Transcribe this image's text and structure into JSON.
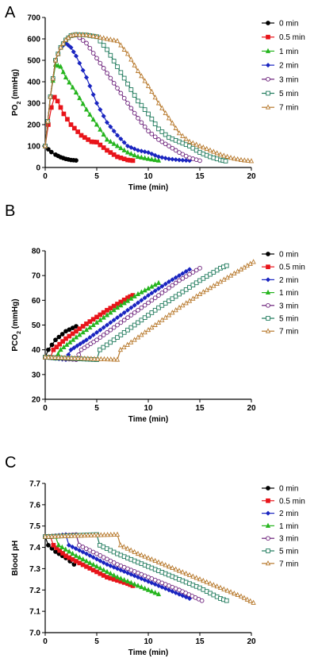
{
  "chart_data": [
    {
      "panel_letter": "A",
      "type": "line",
      "xlabel": "Time (min)",
      "ylabel_main": "PO",
      "ylabel_sub": "2",
      "ylabel_tail": " (mmHg)",
      "xlim": [
        0,
        20
      ],
      "ylim": [
        0,
        700
      ],
      "xticks": [
        0,
        5,
        10,
        15,
        20
      ],
      "yticks": [
        0,
        100,
        200,
        300,
        400,
        500,
        600,
        700
      ],
      "legend_position": "right",
      "series": [
        {
          "name": "0 min",
          "color": "#000000",
          "marker": "circle",
          "x": [
            0,
            0.3,
            0.6,
            1.0,
            1.5,
            2.0,
            2.5,
            3.0
          ],
          "y": [
            100,
            85,
            72,
            60,
            48,
            40,
            35,
            33
          ]
        },
        {
          "name": "0.5 min",
          "color": "#e8141a",
          "marker": "square",
          "x": [
            0,
            0.3,
            0.6,
            0.9,
            1.2,
            1.8,
            2.5,
            3.5,
            4.5,
            5.0,
            6.0,
            7.0,
            8.0,
            8.5
          ],
          "y": [
            100,
            200,
            280,
            328,
            310,
            250,
            200,
            150,
            120,
            118,
            80,
            50,
            35,
            32
          ]
        },
        {
          "name": "1 min",
          "color": "#26b51f",
          "marker": "triangle",
          "x": [
            0,
            0.5,
            1.0,
            1.5,
            2.0,
            3.0,
            4.0,
            5.0,
            6.0,
            7.0,
            8.0,
            9.0,
            10.0,
            11.0
          ],
          "y": [
            100,
            330,
            480,
            470,
            420,
            350,
            270,
            200,
            130,
            100,
            70,
            50,
            40,
            32
          ]
        },
        {
          "name": "2 min",
          "color": "#1a25c0",
          "marker": "diamond",
          "x": [
            0,
            0.5,
            1.0,
            1.5,
            2.0,
            2.5,
            3.0,
            4.0,
            5.0,
            6.0,
            7.0,
            8.0,
            9.0,
            10.0,
            11.0,
            12.0,
            13.0,
            14.0
          ],
          "y": [
            100,
            330,
            500,
            560,
            580,
            560,
            520,
            420,
            300,
            210,
            150,
            100,
            80,
            70,
            50,
            40,
            35,
            32
          ]
        },
        {
          "name": "3 min",
          "color": "#6b1f7a",
          "marker": "circle-open",
          "x": [
            0,
            0.5,
            1.0,
            1.5,
            2.0,
            2.5,
            3.0,
            4.0,
            5.0,
            6.0,
            7.0,
            8.0,
            9.0,
            10.0,
            11.0,
            12.0,
            13.0,
            14.0,
            15.0
          ],
          "y": [
            100,
            330,
            500,
            560,
            595,
            615,
            618,
            580,
            510,
            440,
            370,
            300,
            230,
            170,
            130,
            100,
            70,
            45,
            32
          ]
        },
        {
          "name": "5 min",
          "color": "#1f7a5c",
          "marker": "square-open",
          "x": [
            0,
            0.5,
            1.0,
            1.5,
            2.0,
            2.5,
            3.0,
            4.0,
            5.0,
            6.0,
            7.0,
            8.0,
            9.0,
            10.0,
            11.0,
            12.0,
            13.0,
            14.0,
            15.0,
            16.0,
            17.0,
            17.5
          ],
          "y": [
            100,
            330,
            500,
            560,
            595,
            615,
            620,
            618,
            610,
            550,
            470,
            390,
            310,
            250,
            180,
            140,
            120,
            100,
            70,
            50,
            35,
            30
          ]
        },
        {
          "name": "7 min",
          "color": "#b87a2e",
          "marker": "triangle-open",
          "x": [
            0,
            0.5,
            1.0,
            1.5,
            2.0,
            2.5,
            3.0,
            4.0,
            5.0,
            6.0,
            7.0,
            8.0,
            9.0,
            10.0,
            11.0,
            12.0,
            13.0,
            14.0,
            15.0,
            16.0,
            17.0,
            18.0,
            19.0,
            20.0
          ],
          "y": [
            100,
            330,
            500,
            560,
            595,
            615,
            620,
            618,
            610,
            600,
            590,
            530,
            450,
            380,
            300,
            230,
            160,
            120,
            100,
            80,
            60,
            45,
            35,
            30
          ]
        }
      ]
    },
    {
      "panel_letter": "B",
      "type": "line",
      "xlabel": "Time (min)",
      "ylabel_main": "PCO",
      "ylabel_sub": "2",
      "ylabel_tail": " (mmHg)",
      "xlim": [
        0,
        20
      ],
      "ylim": [
        20,
        80
      ],
      "xticks": [
        0,
        5,
        10,
        15,
        20
      ],
      "yticks": [
        20,
        30,
        40,
        50,
        60,
        70,
        80
      ],
      "legend_position": "right",
      "series": [
        {
          "name": "0 min",
          "color": "#000000",
          "marker": "circle",
          "x": [
            0,
            0.3,
            1.0,
            2.0,
            3.0
          ],
          "y": [
            37,
            40,
            44,
            47.5,
            49.5
          ]
        },
        {
          "name": "0.5 min",
          "color": "#e8141a",
          "marker": "square",
          "x": [
            0,
            0.5,
            0.8,
            2.0,
            4.0,
            6.0,
            8.0,
            8.5
          ],
          "y": [
            37,
            37,
            40,
            44.5,
            50.5,
            56,
            61,
            62
          ]
        },
        {
          "name": "2 min",
          "color": "#1a25c0",
          "marker": "diamond",
          "x": [
            0,
            2.0,
            2.5,
            4.0,
            6.0,
            8.0,
            10.0,
            12.0,
            14.0
          ],
          "y": [
            37,
            36,
            40,
            44,
            50,
            56,
            62,
            67.5,
            72.5
          ]
        },
        {
          "name": "1 min",
          "color": "#26b51f",
          "marker": "triangle",
          "x": [
            0,
            1.0,
            1.5,
            3.0,
            5.0,
            7.0,
            9.0,
            11.0
          ],
          "y": [
            37,
            36.5,
            40,
            45,
            51,
            57,
            62.5,
            67
          ]
        },
        {
          "name": "3 min",
          "color": "#6b1f7a",
          "marker": "circle-open",
          "x": [
            0,
            3.0,
            3.5,
            5.0,
            7.0,
            9.0,
            11.0,
            13.0,
            15.0
          ],
          "y": [
            37,
            36,
            40,
            44,
            50,
            56,
            62,
            68,
            73
          ]
        },
        {
          "name": "5 min",
          "color": "#1f7a5c",
          "marker": "square-open",
          "x": [
            0,
            5.0,
            5.3,
            7.0,
            9.0,
            11.0,
            13.0,
            15.0,
            17.0,
            17.6
          ],
          "y": [
            37,
            36,
            40,
            45,
            51,
            57,
            62.5,
            68,
            73,
            74
          ]
        },
        {
          "name": "7 min",
          "color": "#b87a2e",
          "marker": "triangle-open",
          "x": [
            0,
            7.0,
            7.3,
            9.0,
            11.0,
            13.0,
            15.0,
            17.0,
            19.0,
            20.2
          ],
          "y": [
            37,
            36,
            40,
            45,
            51,
            57,
            62.5,
            67.5,
            72.5,
            75.5
          ]
        }
      ]
    },
    {
      "panel_letter": "C",
      "type": "line",
      "xlabel": "Time (min)",
      "ylabel_main": "Blood pH",
      "ylabel_sub": "",
      "ylabel_tail": "",
      "xlim": [
        0,
        20
      ],
      "ylim": [
        7.0,
        7.7
      ],
      "xticks": [
        0,
        5,
        10,
        15,
        20
      ],
      "yticks": [
        7.0,
        7.1,
        7.2,
        7.3,
        7.4,
        7.5,
        7.6,
        7.7
      ],
      "ytick_decimals": 1,
      "legend_position": "right",
      "series": [
        {
          "name": "0 min",
          "color": "#000000",
          "marker": "circle",
          "x": [
            0,
            0.3,
            1.0,
            2.0,
            2.8
          ],
          "y": [
            7.45,
            7.41,
            7.38,
            7.35,
            7.32
          ]
        },
        {
          "name": "0.5 min",
          "color": "#e8141a",
          "marker": "square",
          "x": [
            0,
            0.5,
            0.8,
            2.0,
            4.0,
            6.0,
            8.0,
            8.5
          ],
          "y": [
            7.45,
            7.45,
            7.41,
            7.36,
            7.31,
            7.26,
            7.23,
            7.22
          ]
        },
        {
          "name": "2 min",
          "color": "#1a25c0",
          "marker": "diamond",
          "x": [
            0,
            2.0,
            2.3,
            4.0,
            6.0,
            8.0,
            10.0,
            12.0,
            14.0
          ],
          "y": [
            7.45,
            7.46,
            7.41,
            7.37,
            7.32,
            7.28,
            7.24,
            7.2,
            7.16
          ]
        },
        {
          "name": "1 min",
          "color": "#26b51f",
          "marker": "triangle",
          "x": [
            0,
            1.0,
            1.3,
            3.0,
            5.0,
            7.0,
            9.0,
            11.0
          ],
          "y": [
            7.45,
            7.45,
            7.41,
            7.36,
            7.31,
            7.26,
            7.22,
            7.18
          ]
        },
        {
          "name": "3 min",
          "color": "#6b1f7a",
          "marker": "circle-open",
          "x": [
            0,
            3.0,
            3.3,
            5.0,
            7.0,
            9.0,
            11.0,
            13.0,
            15.2
          ],
          "y": [
            7.45,
            7.46,
            7.41,
            7.37,
            7.32,
            7.28,
            7.24,
            7.2,
            7.15
          ]
        },
        {
          "name": "5 min",
          "color": "#1f7a5c",
          "marker": "square-open",
          "x": [
            0,
            5.0,
            5.3,
            7.0,
            9.0,
            11.0,
            13.0,
            15.0,
            17.0,
            17.6
          ],
          "y": [
            7.45,
            7.46,
            7.41,
            7.37,
            7.33,
            7.29,
            7.25,
            7.21,
            7.16,
            7.15
          ]
        },
        {
          "name": "7 min",
          "color": "#b87a2e",
          "marker": "triangle-open",
          "x": [
            0,
            7.0,
            7.3,
            9.0,
            11.0,
            13.0,
            15.0,
            17.0,
            19.0,
            20.2
          ],
          "y": [
            7.45,
            7.46,
            7.41,
            7.37,
            7.33,
            7.29,
            7.25,
            7.21,
            7.17,
            7.14
          ]
        }
      ]
    }
  ]
}
